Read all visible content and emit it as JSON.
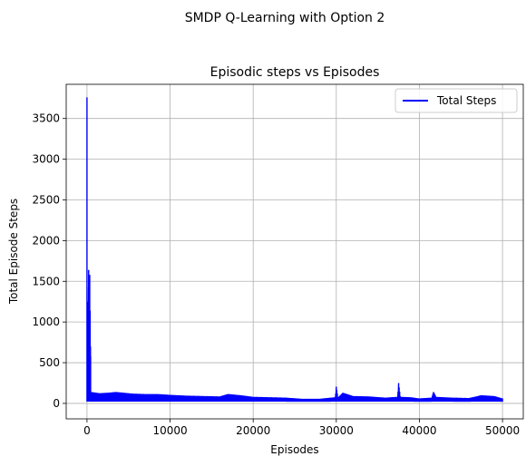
{
  "figure": {
    "suptitle": "SMDP Q-Learning with Option 2"
  },
  "chart_data": {
    "type": "line",
    "title": "Episodic steps vs Episodes",
    "xlabel": "Episodes",
    "ylabel": "Total Episode Steps",
    "xlim": [
      -2500,
      52500
    ],
    "ylim": [
      -190,
      3920
    ],
    "xticks": [
      0,
      10000,
      20000,
      30000,
      40000,
      50000
    ],
    "xtick_labels": [
      "0",
      "10000",
      "20000",
      "30000",
      "40000",
      "50000"
    ],
    "yticks": [
      0,
      500,
      1000,
      1500,
      2000,
      2500,
      3000,
      3500
    ],
    "ytick_labels": [
      "0",
      "500",
      "1000",
      "1500",
      "2000",
      "2500",
      "3000",
      "3500"
    ],
    "grid": true,
    "legend_position": "upper right",
    "series": [
      {
        "name": "Total Steps",
        "color": "#0000ff",
        "baseline": 22,
        "points": [
          [
            0,
            3760
          ],
          [
            40,
            600
          ],
          [
            80,
            1250
          ],
          [
            120,
            300
          ],
          [
            200,
            1640
          ],
          [
            260,
            200
          ],
          [
            330,
            1580
          ],
          [
            420,
            700
          ],
          [
            500,
            140
          ],
          [
            1500,
            125
          ],
          [
            2500,
            130
          ],
          [
            3500,
            140
          ],
          [
            4500,
            130
          ],
          [
            5500,
            120
          ],
          [
            7000,
            115
          ],
          [
            8500,
            115
          ],
          [
            10000,
            105
          ],
          [
            12000,
            95
          ],
          [
            14000,
            90
          ],
          [
            16000,
            85
          ],
          [
            17000,
            115
          ],
          [
            18500,
            100
          ],
          [
            20000,
            80
          ],
          [
            22000,
            75
          ],
          [
            24000,
            70
          ],
          [
            26000,
            55
          ],
          [
            28000,
            55
          ],
          [
            29900,
            75
          ],
          [
            30000,
            205
          ],
          [
            30200,
            70
          ],
          [
            30800,
            130
          ],
          [
            32000,
            90
          ],
          [
            34000,
            85
          ],
          [
            36000,
            70
          ],
          [
            37400,
            80
          ],
          [
            37500,
            250
          ],
          [
            37700,
            80
          ],
          [
            39000,
            75
          ],
          [
            40000,
            60
          ],
          [
            41500,
            70
          ],
          [
            41700,
            140
          ],
          [
            42000,
            80
          ],
          [
            44000,
            70
          ],
          [
            46000,
            65
          ],
          [
            47500,
            100
          ],
          [
            49000,
            90
          ],
          [
            50000,
            60
          ]
        ]
      }
    ]
  }
}
